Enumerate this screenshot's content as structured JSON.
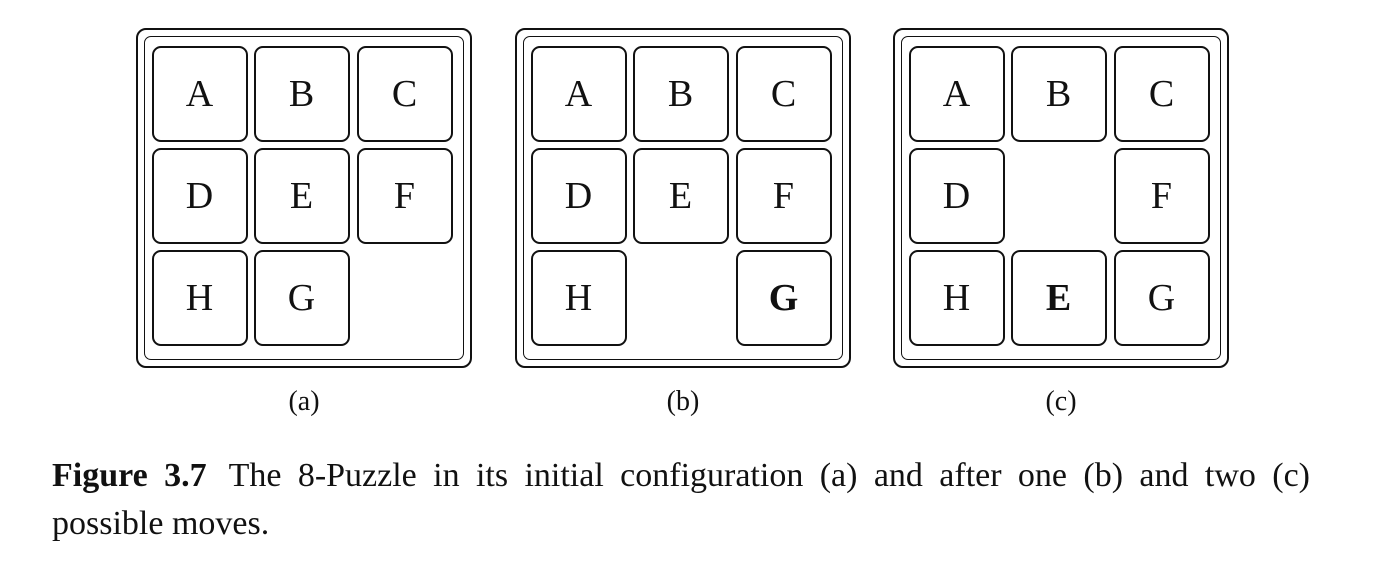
{
  "puzzles": [
    {
      "label": "(a)",
      "cells": [
        {
          "text": "A",
          "bold": false
        },
        {
          "text": "B",
          "bold": false
        },
        {
          "text": "C",
          "bold": false
        },
        {
          "text": "D",
          "bold": false
        },
        {
          "text": "E",
          "bold": false
        },
        {
          "text": "F",
          "bold": false
        },
        {
          "text": "H",
          "bold": false
        },
        {
          "text": "G",
          "bold": false
        },
        null
      ]
    },
    {
      "label": "(b)",
      "cells": [
        {
          "text": "A",
          "bold": false
        },
        {
          "text": "B",
          "bold": false
        },
        {
          "text": "C",
          "bold": false
        },
        {
          "text": "D",
          "bold": false
        },
        {
          "text": "E",
          "bold": false
        },
        {
          "text": "F",
          "bold": false
        },
        {
          "text": "H",
          "bold": false
        },
        null,
        {
          "text": "G",
          "bold": true
        }
      ]
    },
    {
      "label": "(c)",
      "cells": [
        {
          "text": "A",
          "bold": false
        },
        {
          "text": "B",
          "bold": false
        },
        {
          "text": "C",
          "bold": false
        },
        {
          "text": "D",
          "bold": false
        },
        null,
        {
          "text": "F",
          "bold": false
        },
        {
          "text": "H",
          "bold": false
        },
        {
          "text": "E",
          "bold": true
        },
        {
          "text": "G",
          "bold": false
        }
      ]
    }
  ],
  "caption": {
    "label": "Figure 3.7",
    "text": "The 8-Puzzle in its initial configuration (a) and after one (b) and two (c) possible moves."
  }
}
